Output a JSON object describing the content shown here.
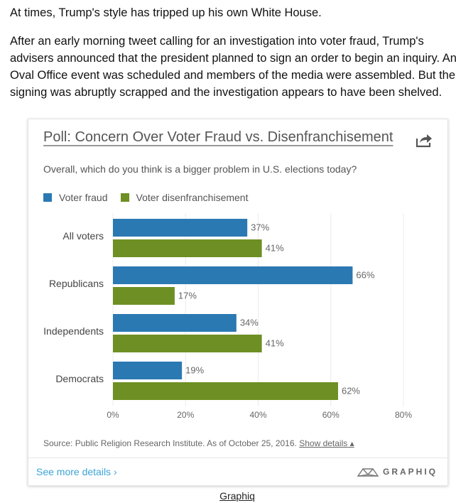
{
  "article": {
    "para1": "At times, Trump's style has tripped up his own White House.",
    "para2_lines": [
      "After an early morning tweet calling for an investigation into voter fraud, Trump's",
      "advisers announced that the president planned to sign an order to begin an inquiry. An",
      "Oval Office event was scheduled and members of the media were assembled. But the",
      "signing was abruptly scrapped and the investigation appears to have been shelved."
    ]
  },
  "card": {
    "title": "Poll: Concern Over Voter Fraud vs. Disenfranchisement",
    "question": "Overall, which do you think is a bigger problem in U.S. elections today?",
    "source_text": "Source: Public Religion Research Institute. As of October 25, 2016.",
    "show_details": "Show details",
    "see_more": "See more details ›",
    "brand": "GRAPHIQ",
    "share_icon": "share-icon"
  },
  "credit": "Graphiq",
  "colors": {
    "voter_fraud": "#2b79b3",
    "disenfranchisement": "#6e8f23",
    "link": "#3ba3d8"
  },
  "chart_data": {
    "type": "bar",
    "orientation": "horizontal",
    "categories": [
      "All voters",
      "Republicans",
      "Independents",
      "Democrats"
    ],
    "series": [
      {
        "name": "Voter fraud",
        "values": [
          37,
          66,
          34,
          19
        ]
      },
      {
        "name": "Voter disenfranchisement",
        "values": [
          41,
          17,
          41,
          62
        ]
      }
    ],
    "value_suffix": "%",
    "xlim": [
      0,
      80
    ],
    "xticks": [
      "0%",
      "20%",
      "40%",
      "60%",
      "80%"
    ],
    "grid": true,
    "legend_position": "top-left"
  }
}
